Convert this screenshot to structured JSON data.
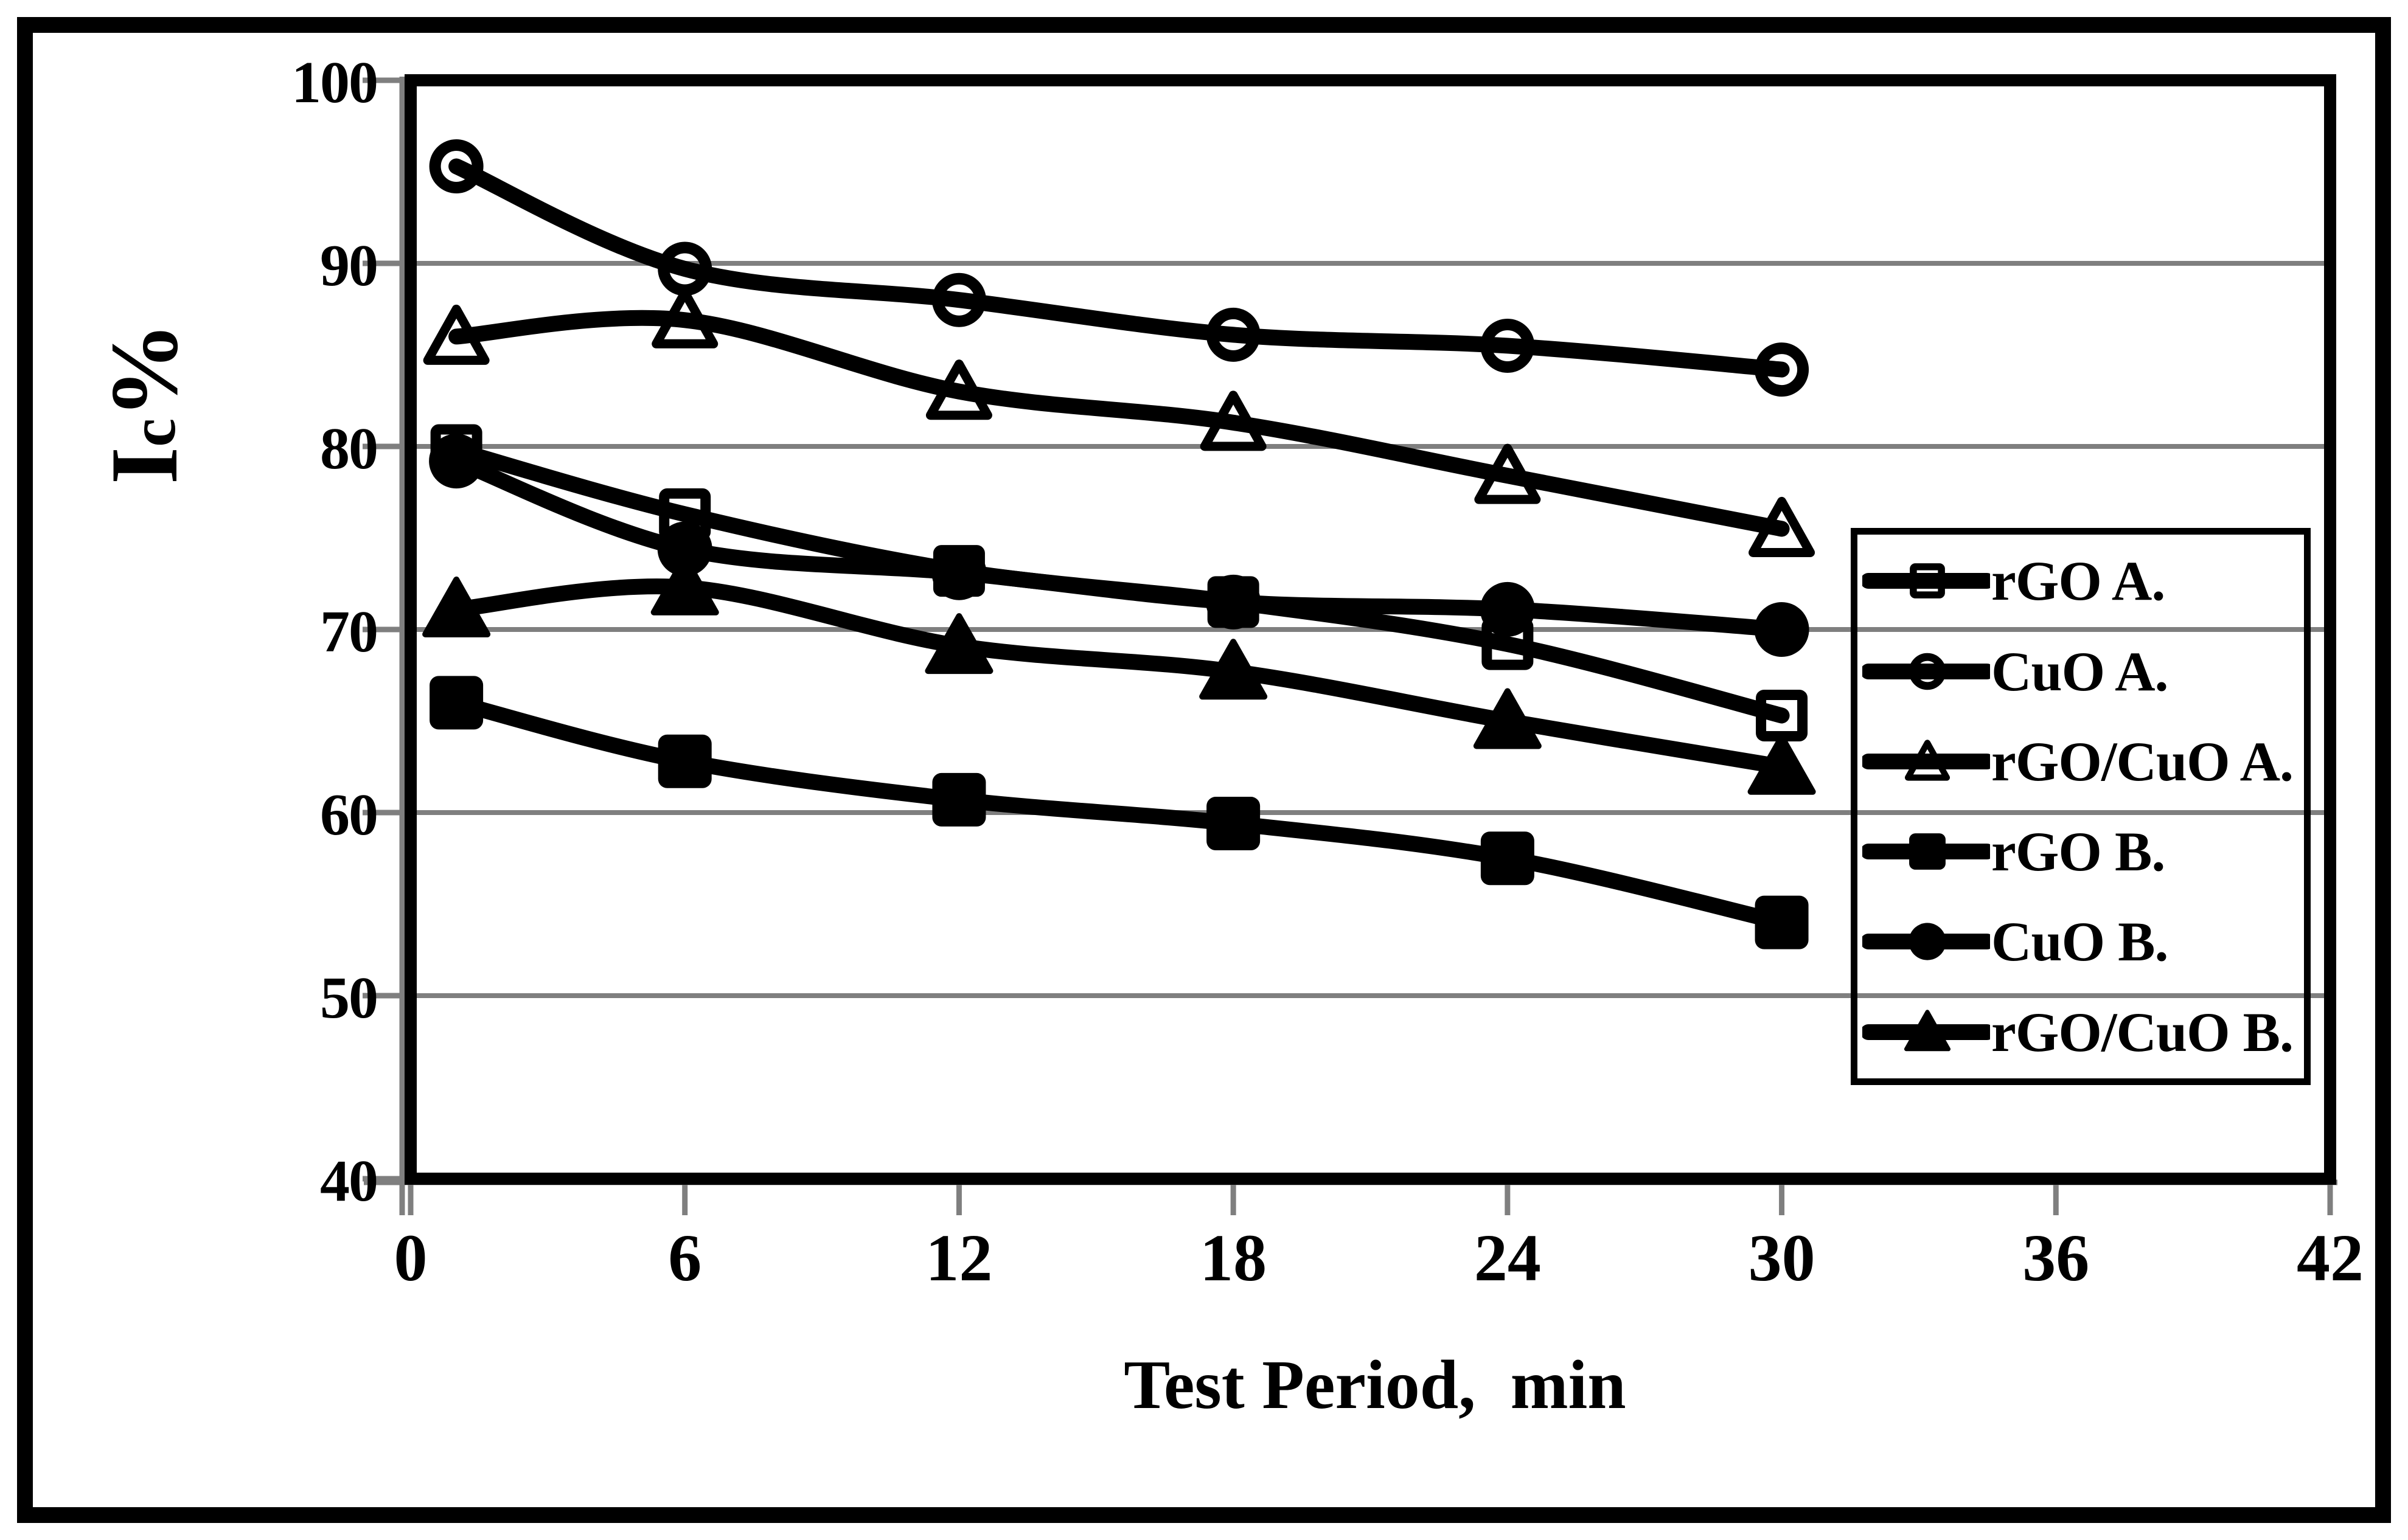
{
  "chart_data": {
    "type": "line",
    "title": "",
    "xlabel": "Test Period,  min",
    "ylabel": "Ic%",
    "ylabel_parts": [
      "I",
      "c",
      "%"
    ],
    "xlim": [
      0,
      42
    ],
    "ylim": [
      40,
      100
    ],
    "x_ticks": [
      0,
      6,
      12,
      18,
      24,
      30,
      36,
      42
    ],
    "y_ticks": [
      100,
      90,
      80,
      70,
      60,
      50,
      40
    ],
    "gridline_values": [
      90,
      80,
      70,
      60,
      50
    ],
    "grid_on": true,
    "legend_position": "right-inside",
    "x": [
      1,
      6,
      12,
      18,
      24,
      30
    ],
    "series": [
      {
        "name": "rGO A.",
        "marker": "square-open",
        "values": [
          79.8,
          76.3,
          73.2,
          71.5,
          69.2,
          65.3
        ]
      },
      {
        "name": "CuO A.",
        "marker": "circle-open",
        "values": [
          95.3,
          89.7,
          88.0,
          86.1,
          85.5,
          84.2
        ]
      },
      {
        "name": "rGO/CuO A.",
        "marker": "triangle-open",
        "values": [
          86.0,
          86.9,
          83.0,
          81.3,
          78.4,
          75.5
        ]
      },
      {
        "name": "rGO B.",
        "marker": "square-filled",
        "values": [
          66.0,
          62.8,
          60.7,
          59.4,
          57.5,
          54.0
        ]
      },
      {
        "name": "CuO B.",
        "marker": "circle-filled",
        "values": [
          79.2,
          74.4,
          73.1,
          71.5,
          71.1,
          70.0
        ]
      },
      {
        "name": "rGO/CuO B.",
        "marker": "triangle-filled",
        "values": [
          71.1,
          72.3,
          69.1,
          67.7,
          65.0,
          62.5
        ]
      }
    ],
    "colors": {
      "line": "#000000",
      "grid": "#7f7f7f",
      "axis_gray": "#7f7f7f",
      "background": "#ffffff",
      "border": "#000000"
    },
    "line_style": "smooth"
  }
}
